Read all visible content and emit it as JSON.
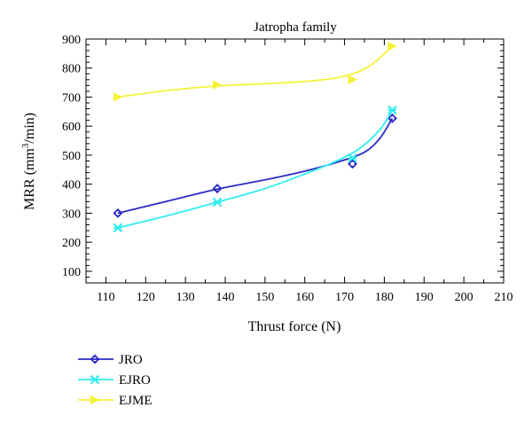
{
  "chart_data": {
    "type": "line",
    "title": "Jatropha family",
    "xlabel": "Thrust force (N)",
    "ylabel_prefix": "MRR (mm",
    "ylabel_sup": "3",
    "ylabel_suffix": "/min)",
    "xlim": [
      105,
      210
    ],
    "ylim": [
      60,
      900
    ],
    "xticks": [
      110,
      120,
      130,
      140,
      150,
      160,
      170,
      180,
      190,
      200,
      210
    ],
    "yticks": [
      100,
      200,
      300,
      400,
      500,
      600,
      700,
      800,
      900
    ],
    "grid": false,
    "legend_position": "bottom-left outside",
    "series": [
      {
        "name": "JRO",
        "color": "#2a2ac8",
        "marker": "diamond-circle",
        "x": [
          113,
          138,
          172,
          182
        ],
        "y": [
          300,
          385,
          470,
          627
        ],
        "fit": [
          [
            113,
            300
          ],
          [
            125,
            340
          ],
          [
            138,
            383
          ],
          [
            150,
            415
          ],
          [
            160,
            445
          ],
          [
            168,
            475
          ],
          [
            175,
            510
          ],
          [
            179,
            560
          ],
          [
            182,
            627
          ]
        ]
      },
      {
        "name": "EJRO",
        "color": "#33eeee",
        "marker": "star",
        "x": [
          113,
          138,
          172,
          182
        ],
        "y": [
          250,
          338,
          490,
          655
        ],
        "fit": [
          [
            113,
            250
          ],
          [
            125,
            290
          ],
          [
            138,
            338
          ],
          [
            150,
            385
          ],
          [
            160,
            435
          ],
          [
            168,
            480
          ],
          [
            174,
            525
          ],
          [
            179,
            590
          ],
          [
            182,
            655
          ]
        ]
      },
      {
        "name": "EJME",
        "color": "#f5f23a",
        "marker": "triangle-right",
        "x": [
          113,
          138,
          172,
          182
        ],
        "y": [
          700,
          742,
          760,
          875
        ],
        "fit": [
          [
            113,
            700
          ],
          [
            125,
            722
          ],
          [
            138,
            738
          ],
          [
            150,
            746
          ],
          [
            160,
            754
          ],
          [
            168,
            766
          ],
          [
            174,
            790
          ],
          [
            178,
            825
          ],
          [
            182,
            875
          ]
        ]
      }
    ]
  }
}
